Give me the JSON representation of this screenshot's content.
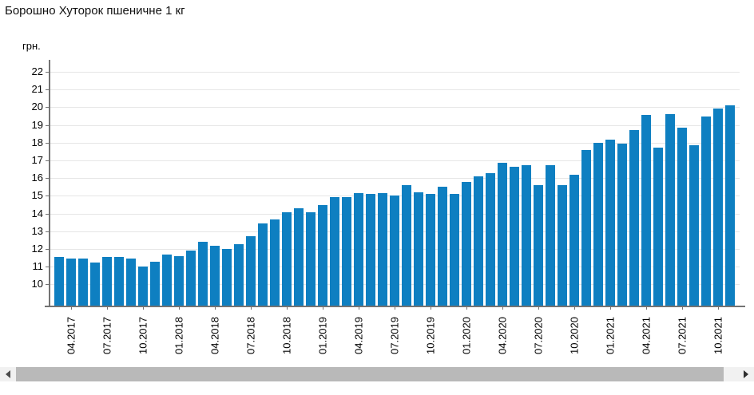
{
  "page": {
    "title": "Борошно Хуторок пшеничне 1 кг"
  },
  "chart_data": {
    "type": "bar",
    "title": "Борошно Хуторок пшеничне 1 кг",
    "xlabel": "",
    "ylabel": "грн.",
    "categories": [
      "03.2017",
      "04.2017",
      "05.2017",
      "06.2017",
      "07.2017",
      "08.2017",
      "09.2017",
      "10.2017",
      "11.2017",
      "12.2017",
      "01.2018",
      "02.2018",
      "03.2018",
      "04.2018",
      "05.2018",
      "06.2018",
      "07.2018",
      "08.2018",
      "09.2018",
      "10.2018",
      "11.2018",
      "12.2018",
      "01.2019",
      "02.2019",
      "03.2019",
      "04.2019",
      "05.2019",
      "06.2019",
      "07.2019",
      "08.2019",
      "09.2019",
      "10.2019",
      "11.2019",
      "12.2019",
      "01.2020",
      "02.2020",
      "03.2020",
      "04.2020",
      "05.2020",
      "06.2020",
      "07.2020",
      "08.2020",
      "09.2020",
      "10.2020",
      "11.2020",
      "12.2020",
      "01.2021",
      "02.2021",
      "03.2021",
      "04.2021",
      "05.2021",
      "06.2021",
      "07.2021",
      "08.2021",
      "09.2021",
      "10.2021",
      "11.2021"
    ],
    "values": [
      11.55,
      11.45,
      11.45,
      11.25,
      11.55,
      11.55,
      11.45,
      11.0,
      11.3,
      11.7,
      11.6,
      11.9,
      12.4,
      12.2,
      12.0,
      12.25,
      12.7,
      13.45,
      13.65,
      14.05,
      14.3,
      14.05,
      14.5,
      14.95,
      14.95,
      15.15,
      15.1,
      15.15,
      15.0,
      15.6,
      15.2,
      15.1,
      15.5,
      15.1,
      15.8,
      16.1,
      16.3,
      16.85,
      16.65,
      16.75,
      15.6,
      16.75,
      15.6,
      16.2,
      17.6,
      18.0,
      18.15,
      17.95,
      18.7,
      19.55,
      17.7,
      19.6,
      18.85,
      17.85,
      19.5,
      19.95,
      20.1
    ],
    "x_tick_labels": [
      "04.2017",
      "07.2017",
      "10.2017",
      "01.2018",
      "04.2018",
      "07.2018",
      "10.2018",
      "01.2019",
      "04.2019",
      "07.2019",
      "10.2019",
      "01.2020",
      "04.2020",
      "07.2020",
      "10.2020",
      "01.2021",
      "04.2021",
      "07.2021",
      "10.2021"
    ],
    "y_ticks": [
      10,
      11,
      12,
      13,
      14,
      15,
      16,
      17,
      18,
      19,
      20,
      21,
      22
    ],
    "ylim": [
      8.8,
      22.6
    ],
    "grid": true,
    "legend_position": "none",
    "bar_color": "#0e7fc1",
    "gridline_color": "#e6e6e6",
    "axis_color": "#737373"
  },
  "scrollbar": {
    "left_arrow_icon": "left-triangle",
    "right_arrow_icon": "right-triangle",
    "thumb_color": "#b9b9b9",
    "track_color": "#f1f1f1"
  }
}
